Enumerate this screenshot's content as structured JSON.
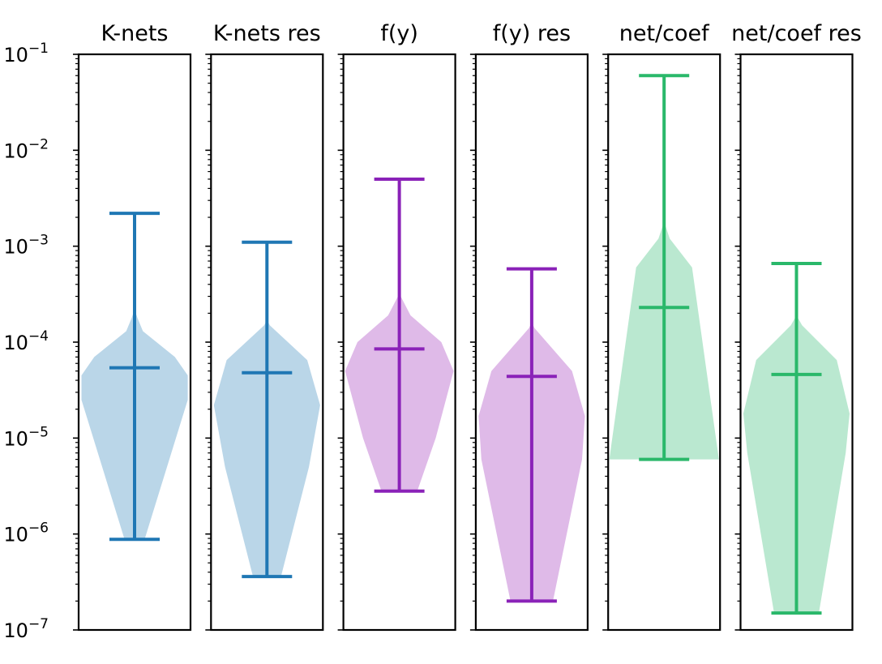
{
  "chart_data": {
    "type": "violin",
    "y_scale": "log",
    "ylim": [
      1e-07,
      0.1
    ],
    "y_ticks": [
      {
        "value": 1e-07,
        "base": "10",
        "exp": "−7"
      },
      {
        "value": 1e-06,
        "base": "10",
        "exp": "−6"
      },
      {
        "value": 1e-05,
        "base": "10",
        "exp": "−5"
      },
      {
        "value": 0.0001,
        "base": "10",
        "exp": "−4"
      },
      {
        "value": 0.001,
        "base": "10",
        "exp": "−3"
      },
      {
        "value": 0.01,
        "base": "10",
        "exp": "−2"
      },
      {
        "value": 0.1,
        "base": "10",
        "exp": "−1"
      }
    ],
    "grid": false,
    "panels": [
      {
        "title": "K-nets",
        "fill": "#bad6e8",
        "line": "#1f77b4",
        "min": 8.8e-07,
        "median": 5.4e-05,
        "max": 0.0022,
        "profile": [
          [
            8.8e-07,
            0.18
          ],
          [
            2.5e-05,
            0.95
          ],
          [
            4.5e-05,
            0.95
          ],
          [
            7e-05,
            0.72
          ],
          [
            0.00013,
            0.15
          ],
          [
            0.00018,
            0.05
          ],
          [
            0.00022,
            0.0
          ]
        ]
      },
      {
        "title": "K-nets res",
        "fill": "#bad6e8",
        "line": "#1f77b4",
        "min": 3.6e-07,
        "median": 4.8e-05,
        "max": 0.0011,
        "profile": [
          [
            3.6e-07,
            0.25
          ],
          [
            5e-06,
            0.75
          ],
          [
            2.2e-05,
            0.95
          ],
          [
            6.5e-05,
            0.72
          ],
          [
            0.00015,
            0.05
          ],
          [
            0.00017,
            0.0
          ]
        ]
      },
      {
        "title": "f(y)",
        "fill": "#dfbae8",
        "line": "#8a22b8",
        "min": 2.8e-06,
        "median": 8.5e-05,
        "max": 0.005,
        "profile": [
          [
            2.8e-06,
            0.32
          ],
          [
            1e-05,
            0.65
          ],
          [
            5e-05,
            0.97
          ],
          [
            0.0001,
            0.75
          ],
          [
            0.00019,
            0.2
          ],
          [
            0.00032,
            0.0
          ]
        ]
      },
      {
        "title": "f(y) res",
        "fill": "#dfbae8",
        "line": "#8a22b8",
        "min": 2e-07,
        "median": 4.4e-05,
        "max": 0.00058,
        "profile": [
          [
            2e-07,
            0.38
          ],
          [
            6e-06,
            0.9
          ],
          [
            1.7e-05,
            0.95
          ],
          [
            5e-05,
            0.72
          ],
          [
            0.00014,
            0.05
          ],
          [
            0.00016,
            0.0
          ]
        ]
      },
      {
        "title": "net/coef",
        "fill": "#bae8d0",
        "line": "#2ab86a",
        "min": 6e-06,
        "median": 0.00023,
        "max": 0.06,
        "profile": [
          [
            6e-06,
            0.98
          ],
          [
            0.0006,
            0.5
          ],
          [
            0.0012,
            0.1
          ],
          [
            0.0018,
            0.0
          ]
        ]
      },
      {
        "title": "net/coef res",
        "fill": "#bae8d0",
        "line": "#2ab86a",
        "min": 1.5e-07,
        "median": 4.6e-05,
        "max": 0.00066,
        "profile": [
          [
            1.5e-07,
            0.4
          ],
          [
            7e-06,
            0.88
          ],
          [
            1.8e-05,
            0.95
          ],
          [
            6.5e-05,
            0.72
          ],
          [
            0.00015,
            0.1
          ],
          [
            0.00019,
            0.0
          ]
        ]
      }
    ]
  }
}
